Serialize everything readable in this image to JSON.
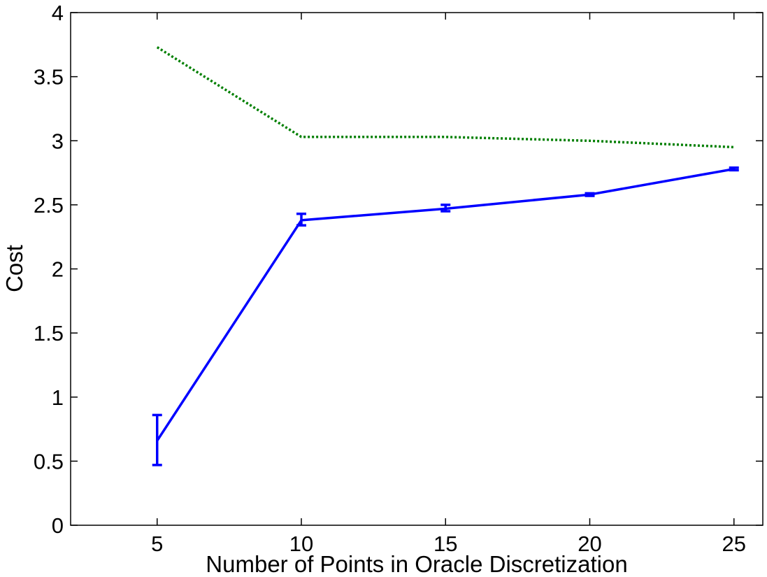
{
  "chart_data": {
    "type": "line",
    "title": "",
    "xlabel": "Number of Points in Oracle Discretization",
    "ylabel": "Cost",
    "xlim": [
      2,
      26
    ],
    "ylim": [
      0,
      4
    ],
    "x_ticks": [
      5,
      10,
      15,
      20,
      25
    ],
    "y_ticks": [
      0,
      0.5,
      1,
      1.5,
      2,
      2.5,
      3,
      3.5,
      4
    ],
    "y_tick_labels": [
      "0",
      "0.5",
      "1",
      "1.5",
      "2",
      "2.5",
      "3",
      "3.5",
      "4"
    ],
    "x_tick_labels": [
      "5",
      "10",
      "15",
      "20",
      "25"
    ],
    "grid": false,
    "legend": "none",
    "series": [
      {
        "style": "solid",
        "color": "#0000ff",
        "x": [
          5,
          10,
          15,
          20,
          25
        ],
        "y": [
          0.66,
          2.38,
          2.47,
          2.58,
          2.78
        ],
        "error_low": [
          0.47,
          2.34,
          2.45,
          2.57,
          2.77
        ],
        "error_high": [
          0.86,
          2.43,
          2.5,
          2.59,
          2.79
        ]
      },
      {
        "style": "dotted",
        "color": "#007f00",
        "x": [
          5,
          10,
          15,
          20,
          25
        ],
        "y": [
          3.73,
          3.03,
          3.03,
          3.0,
          2.95
        ]
      }
    ]
  }
}
